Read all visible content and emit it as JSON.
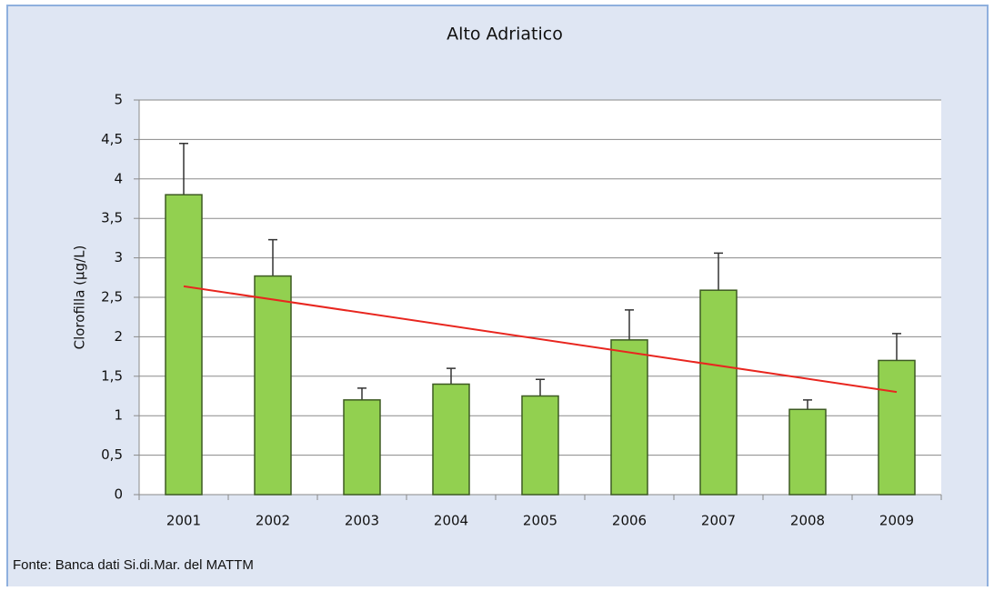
{
  "chart_data": {
    "type": "bar",
    "title": "Alto Adriatico",
    "y_label": "Clorofilla  (µg/L)",
    "source": "Fonte: Banca dati Si.di.Mar. del MATTM",
    "categories": [
      "2001",
      "2002",
      "2003",
      "2004",
      "2005",
      "2006",
      "2007",
      "2008",
      "2009"
    ],
    "values": [
      3.8,
      2.77,
      1.2,
      1.4,
      1.25,
      1.96,
      2.59,
      1.08,
      1.7
    ],
    "errors": [
      0.65,
      0.46,
      0.15,
      0.2,
      0.21,
      0.38,
      0.47,
      0.12,
      0.34
    ],
    "color": "#92d050",
    "trend": {
      "values": [
        2.64,
        1.3
      ],
      "color": "#e8261f"
    },
    "ylim": [
      0,
      5
    ],
    "yticks": [
      0,
      {
        "value": 0.5,
        "label": "0,5"
      },
      1,
      {
        "value": 1.5,
        "label": "1,5"
      },
      2,
      {
        "value": 2.5,
        "label": "2,5"
      },
      3,
      {
        "value": 3.5,
        "label": "3,5"
      },
      4,
      {
        "value": 4.5,
        "label": "4,5"
      },
      5
    ],
    "grid": true
  }
}
